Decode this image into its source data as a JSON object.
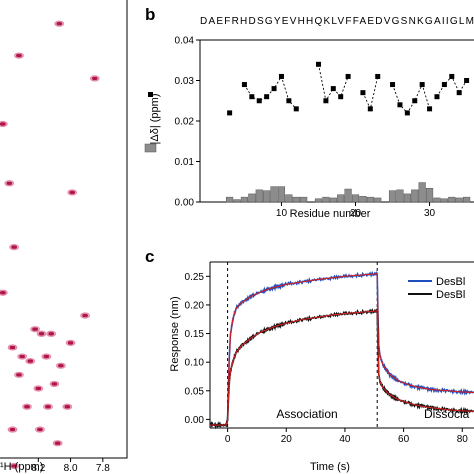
{
  "panels": {
    "a": {
      "xlabel": "¹H (ppm)",
      "ticks_x": [
        "8.2",
        "8.0",
        "7.8"
      ]
    },
    "b": {
      "label": "b",
      "sequence": "DAEFRHDSGYEVHHQKLVFFAEDVGSNKGAIIGLM",
      "ylabel": "|Δδ| (ppm)",
      "xlabel": "Residue number"
    },
    "c": {
      "label": "c",
      "ylabel": "Response (nm)",
      "xlabel": "Time (s)",
      "annotations": [
        "Association",
        "Dissocia"
      ],
      "legend": [
        "DesBl",
        "DesBl"
      ]
    }
  },
  "chart_data": [
    {
      "type": "scatter",
      "panel": "a",
      "xlabel": "¹H (ppm)",
      "x_reversed": true,
      "xlim": [
        8.45,
        7.65
      ],
      "ylim": [
        0,
        100
      ],
      "x_ticks": [
        8.2,
        8.0,
        7.8
      ],
      "colors": {
        "peak": "#b0144a",
        "peak_alt": "#e28aa8"
      },
      "peaks": [
        [
          8.07,
          3
        ],
        [
          8.32,
          10
        ],
        [
          7.85,
          15
        ],
        [
          8.42,
          25
        ],
        [
          8.38,
          38
        ],
        [
          7.99,
          40
        ],
        [
          8.35,
          52
        ],
        [
          8.42,
          62
        ],
        [
          7.91,
          67
        ],
        [
          8.22,
          70
        ],
        [
          8.18,
          71
        ],
        [
          8.12,
          71
        ],
        [
          8.36,
          74
        ],
        [
          8.3,
          76
        ],
        [
          8.25,
          77
        ],
        [
          8.0,
          73
        ],
        [
          8.15,
          76
        ],
        [
          8.06,
          78
        ],
        [
          8.32,
          80
        ],
        [
          8.2,
          83
        ],
        [
          8.1,
          82
        ],
        [
          8.27,
          87
        ],
        [
          8.14,
          87
        ],
        [
          8.02,
          87
        ],
        [
          8.36,
          92
        ],
        [
          8.19,
          92
        ],
        [
          8.08,
          95
        ],
        [
          8.35,
          100
        ]
      ]
    },
    {
      "type": "bar",
      "panel": "b",
      "ylabel": "|Δδ| (ppm)",
      "xlabel": "Residue number",
      "ylim": [
        0,
        0.04
      ],
      "y_ticks": [
        0.0,
        0.01,
        0.02,
        0.03,
        0.04
      ],
      "x_ticks": [
        10,
        20,
        30
      ],
      "xlim": [
        -1,
        36
      ],
      "colors": {
        "bar": "#8c8c8c",
        "line": "#000000"
      },
      "residues": [
        3,
        4,
        5,
        6,
        7,
        8,
        9,
        10,
        11,
        12,
        13,
        15,
        16,
        17,
        18,
        19,
        20,
        21,
        22,
        23,
        25,
        26,
        27,
        28,
        29,
        30,
        31,
        32,
        33,
        34,
        35
      ],
      "bars": [
        0.0012,
        0.0006,
        0.0012,
        0.002,
        0.003,
        0.0028,
        0.0038,
        0.0038,
        0.0018,
        0.0012,
        0.0012,
        0.0008,
        0.0012,
        0.001,
        0.0018,
        0.0032,
        0.0018,
        0.0014,
        0.0012,
        0.001,
        0.0028,
        0.003,
        0.002,
        0.003,
        0.0048,
        0.0034,
        0.001,
        0.0008,
        0.0012,
        0.001,
        0.0012
      ],
      "line_segments": [
        {
          "x": [
            3
          ],
          "y": [
            0.022
          ]
        },
        {
          "x": [
            5,
            6,
            7,
            8,
            9,
            10,
            11,
            12
          ],
          "y": [
            0.029,
            0.026,
            0.025,
            0.026,
            0.028,
            0.031,
            0.025,
            0.023
          ]
        },
        {
          "x": [
            15,
            16,
            17,
            18,
            19
          ],
          "y": [
            0.034,
            0.025,
            0.028,
            0.026,
            0.031
          ]
        },
        {
          "x": [
            21,
            22,
            23
          ],
          "y": [
            0.027,
            0.023,
            0.031
          ]
        },
        {
          "x": [
            25,
            26,
            27,
            28,
            29,
            30
          ],
          "y": [
            0.029,
            0.024,
            0.022,
            0.025,
            0.029,
            0.023
          ]
        },
        {
          "x": [
            31,
            32,
            33,
            34,
            35
          ],
          "y": [
            0.026,
            0.029,
            0.031,
            0.027,
            0.03
          ]
        }
      ]
    },
    {
      "type": "line",
      "panel": "c",
      "ylabel": "Response (nm)",
      "xlabel": "Time (s)",
      "xlim": [
        -6,
        84
      ],
      "ylim": [
        -0.015,
        0.275
      ],
      "x_ticks": [
        0,
        20,
        40,
        60,
        80
      ],
      "y_ticks": [
        0.0,
        0.05,
        0.1,
        0.15,
        0.2,
        0.25
      ],
      "markers": [
        0,
        51
      ],
      "colors": {
        "series1": "#1f4fbf",
        "series2": "#111111",
        "fit": "#d42020"
      },
      "series": [
        {
          "name": "DesBl",
          "x": [
            -6,
            -3,
            -0.5,
            0,
            0.5,
            1,
            2,
            3,
            5,
            8,
            11,
            14,
            17,
            20,
            25,
            30,
            35,
            40,
            45,
            50,
            51,
            51.5,
            52,
            53,
            55,
            58,
            62,
            66,
            70,
            75,
            80,
            84
          ],
          "y": [
            -0.01,
            -0.01,
            -0.01,
            0.0,
            0.1,
            0.15,
            0.18,
            0.195,
            0.205,
            0.215,
            0.222,
            0.228,
            0.232,
            0.236,
            0.24,
            0.244,
            0.247,
            0.25,
            0.252,
            0.254,
            0.255,
            0.13,
            0.11,
            0.095,
            0.08,
            0.068,
            0.06,
            0.055,
            0.052,
            0.05,
            0.048,
            0.047
          ]
        },
        {
          "name": "DesBl",
          "x": [
            -6,
            -3,
            -0.5,
            0,
            0.5,
            1,
            2,
            3,
            5,
            8,
            11,
            14,
            17,
            20,
            25,
            30,
            35,
            40,
            45,
            50,
            51,
            51.5,
            52,
            53,
            55,
            58,
            62,
            66,
            70,
            75,
            80,
            84
          ],
          "y": [
            -0.01,
            -0.01,
            -0.01,
            0.0,
            0.06,
            0.085,
            0.105,
            0.118,
            0.13,
            0.142,
            0.152,
            0.158,
            0.164,
            0.168,
            0.174,
            0.178,
            0.182,
            0.185,
            0.187,
            0.189,
            0.19,
            0.08,
            0.065,
            0.055,
            0.044,
            0.035,
            0.028,
            0.023,
            0.02,
            0.017,
            0.015,
            0.014
          ]
        }
      ]
    }
  ]
}
